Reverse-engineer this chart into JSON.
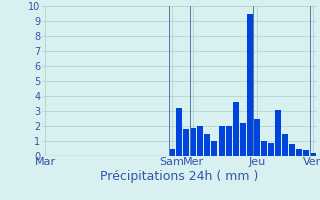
{
  "xlabel": "Précipitations 24h ( mm )",
  "bar_color": "#0044dd",
  "background_color": "#d8f0f0",
  "grid_color": "#aacccc",
  "vline_color": "#5577aa",
  "ylim": [
    0,
    10
  ],
  "yticks": [
    0,
    1,
    2,
    3,
    4,
    5,
    6,
    7,
    8,
    9,
    10
  ],
  "bar_values": [
    0,
    0,
    0,
    0,
    0,
    0,
    0,
    0,
    0,
    0,
    0,
    0,
    0,
    0,
    0,
    0,
    0,
    0,
    0.5,
    3.2,
    1.8,
    1.9,
    2.0,
    1.5,
    1.0,
    2.0,
    2.0,
    3.6,
    2.2,
    9.5,
    2.5,
    1.0,
    0.9,
    3.1,
    1.5,
    0.8,
    0.5,
    0.4,
    0.2
  ],
  "n_bars": 39,
  "day_labels": [
    "Mar",
    "Sam",
    "Mer",
    "Jeu",
    "Ven"
  ],
  "day_tick_positions": [
    0,
    18,
    21,
    30,
    38
  ],
  "vline_positions": [
    18,
    21,
    30,
    38
  ],
  "tick_color": "#3355aa",
  "xlabel_color": "#3355aa",
  "xlabel_fontsize": 9,
  "ytick_fontsize": 7,
  "xtick_fontsize": 8
}
